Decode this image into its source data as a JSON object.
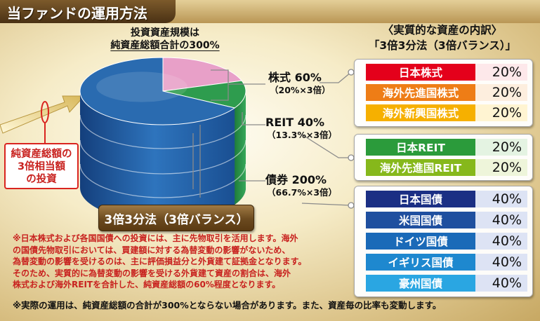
{
  "title": "当ファンドの運用方法",
  "chart_heading": [
    "投資資産規模は",
    "純資産総額合計の300%"
  ],
  "right_heading": [
    "〈実質的な資産の内訳〉",
    "「3倍3分法（3倍バランス）」"
  ],
  "chart_data": {
    "type": "pie",
    "slices": [
      {
        "label": "株式",
        "value": 60
      },
      {
        "label": "REIT",
        "value": 40
      },
      {
        "label": "債券",
        "value": 200
      }
    ]
  },
  "categories": [
    {
      "main": "株式 60%",
      "sub": "（20%×3倍）"
    },
    {
      "main": "REIT 40%",
      "sub": "（13.3%×3倍）"
    },
    {
      "main": "債券 200%",
      "sub": "（66.7%×3倍）"
    }
  ],
  "breakdown": [
    {
      "rows": [
        {
          "name": "日本株式",
          "pct": "20%",
          "name_color": "#e4001b",
          "pct_color": "#fde8ea"
        },
        {
          "name": "海外先進国株式",
          "pct": "20%",
          "name_color": "#ee7d16",
          "pct_color": "#fdeede"
        },
        {
          "name": "海外新興国株式",
          "pct": "20%",
          "name_color": "#f6b000",
          "pct_color": "#fff4d2"
        }
      ]
    },
    {
      "rows": [
        {
          "name": "日本REIT",
          "pct": "20%",
          "name_color": "#2b9b3b",
          "pct_color": "#e4f3e2"
        },
        {
          "name": "海外先進国REIT",
          "pct": "20%",
          "name_color": "#86b81b",
          "pct_color": "#eef5da"
        }
      ]
    },
    {
      "rows": [
        {
          "name": "日本国債",
          "pct": "40%",
          "name_color": "#1b2f84",
          "pct_color": "#dde3f4"
        },
        {
          "name": "米国国債",
          "pct": "40%",
          "name_color": "#1f4f9f",
          "pct_color": "#dde3f4"
        },
        {
          "name": "ドイツ国債",
          "pct": "40%",
          "name_color": "#1a6ab8",
          "pct_color": "#dde3f4"
        },
        {
          "name": "イギリス国債",
          "pct": "40%",
          "name_color": "#1e88cf",
          "pct_color": "#dde3f4"
        },
        {
          "name": "豪州国債",
          "pct": "40%",
          "name_color": "#2aa6e2",
          "pct_color": "#dde3f4"
        }
      ]
    }
  ],
  "leverage_callout": [
    "純資産総額の",
    "3倍相当額",
    "の投資"
  ],
  "strategy_label": "3倍3分法（3倍バランス）",
  "notes": [
    "※日本株式および各国国債への投資には、主に先物取引を活用します。海外",
    "の国債先物取引においては、買建額に対する為替変動の影響がないため、",
    "為替変動の影響を受けるのは、主に評価損益分と外貨建て証拠金となります。",
    "そのため、実質的に為替変動の影響を受ける外貨建て資産の割合は、海外",
    "株式および海外REITを合計した、純資産総額の60%程度となります。"
  ],
  "footnote": "※実際の運用は、純資産総額の合計が300%とならない場合があります。また、資産毎の比率も変動します。",
  "colors": {
    "pie_stock": "#e8a0c8",
    "pie_reit": "#2e9c4e",
    "pie_bond": "#2a6bb0",
    "note_red": "#c8221f",
    "title_bg": "#5e411c"
  }
}
